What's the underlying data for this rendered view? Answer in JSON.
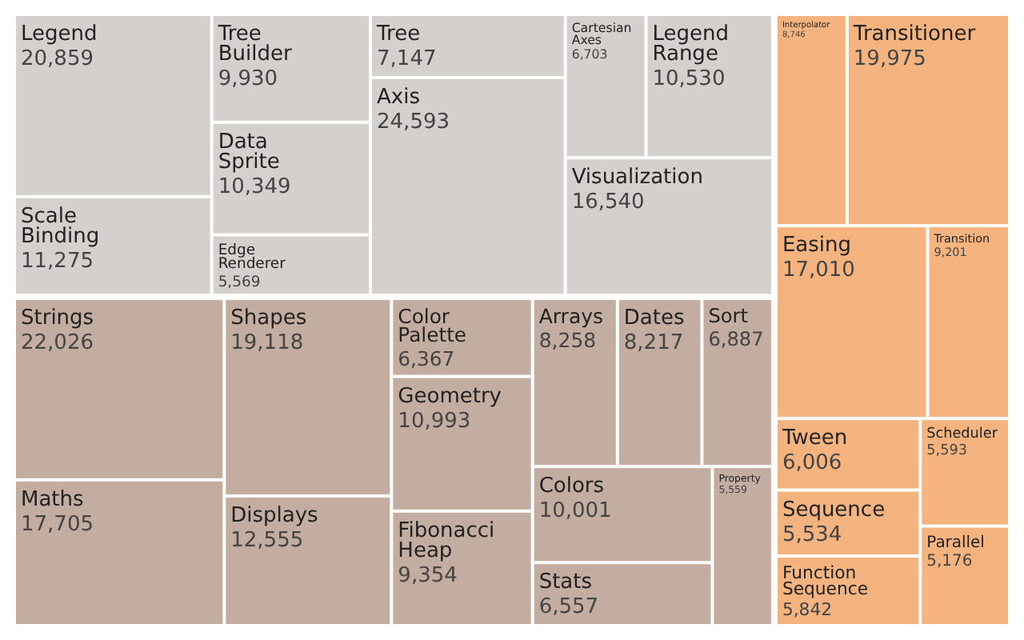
{
  "chart_data": {
    "type": "other",
    "categories": [
      "Legend",
      "Scale Binding",
      "Tree Builder",
      "Data Sprite",
      "Edge Renderer",
      "Tree",
      "Axis",
      "Cartesian Axes",
      "Legend Range",
      "Visualization",
      "Strings",
      "Maths",
      "Shapes",
      "Displays",
      "Color Palette",
      "Geometry",
      "Fibonacci Heap",
      "Arrays",
      "Dates",
      "Sort",
      "Colors",
      "Stats",
      "Property",
      "Interpolator",
      "Transitioner",
      "Easing",
      "Transition",
      "Tween",
      "Sequence",
      "Function Sequence",
      "Scheduler",
      "Parallel"
    ],
    "values": [
      20859,
      11275,
      9930,
      10349,
      5569,
      7147,
      24593,
      6703,
      10530,
      16540,
      22026,
      17705,
      19118,
      12555,
      6367,
      10993,
      9354,
      8258,
      8217,
      6887,
      10001,
      6557,
      5559,
      8746,
      19975,
      17010,
      9201,
      6006,
      5534,
      5842,
      5593,
      5176
    ],
    "value_labels": [
      "20,859",
      "11,275",
      "9,930",
      "10,349",
      "5,569",
      "7,147",
      "24,593",
      "6,703",
      "10,530",
      "16,540",
      "22,026",
      "17,705",
      "19,118",
      "12,555",
      "6,367",
      "10,993",
      "9,354",
      "8,258",
      "8,217",
      "6,887",
      "10,001",
      "6,557",
      "5,559",
      "8,746",
      "19,975",
      "17,010",
      "9,201",
      "6,006",
      "5,534",
      "5,842",
      "5,593",
      "5,176"
    ],
    "colors": [
      "#d4d0cd",
      "#d4d0cd",
      "#d4d0cd",
      "#d4d0cd",
      "#d4d0cd",
      "#d4d0cd",
      "#d4d0cd",
      "#d4d0cd",
      "#d4d0cd",
      "#d4d0cd",
      "#c3ada1",
      "#c3ada1",
      "#c3ada1",
      "#c3ada1",
      "#c3ada1",
      "#c3ada1",
      "#c3ada1",
      "#c3ada1",
      "#c3ada1",
      "#c3ada1",
      "#c3ada1",
      "#c3ada1",
      "#c3ada1",
      "#f5b47f",
      "#f5b47f",
      "#f5b47f",
      "#f5b47f",
      "#f5b47f",
      "#f5b47f",
      "#f5b47f",
      "#f5b47f",
      "#f5b47f"
    ]
  }
}
